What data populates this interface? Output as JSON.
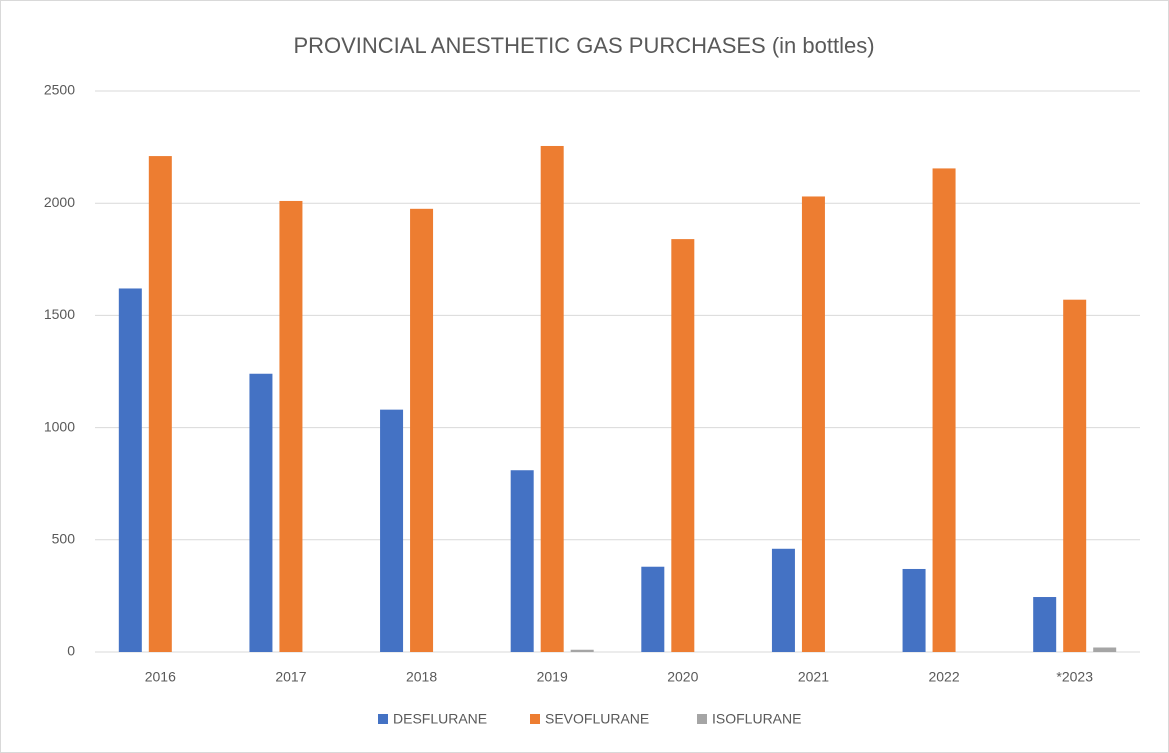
{
  "chart_data": {
    "type": "bar",
    "title": "PROVINCIAL ANESTHETIC GAS PURCHASES (in bottles)",
    "categories": [
      "2016",
      "2017",
      "2018",
      "2019",
      "2020",
      "2021",
      "2022",
      "*2023"
    ],
    "series": [
      {
        "name": "DESFLURANE",
        "color": "#4472c4",
        "values": [
          1620,
          1240,
          1080,
          810,
          380,
          460,
          370,
          245
        ]
      },
      {
        "name": "SEVOFLURANE",
        "color": "#ed7d31",
        "values": [
          2210,
          2010,
          1975,
          2255,
          1840,
          2030,
          2155,
          1570
        ]
      },
      {
        "name": "ISOFLURANE",
        "color": "#a5a5a5",
        "values": [
          0,
          0,
          0,
          10,
          0,
          0,
          0,
          20
        ]
      }
    ],
    "ylim": [
      0,
      2500
    ],
    "yticks": [
      0,
      500,
      1000,
      1500,
      2000,
      2500
    ],
    "grid": true,
    "legend": "bottom"
  }
}
